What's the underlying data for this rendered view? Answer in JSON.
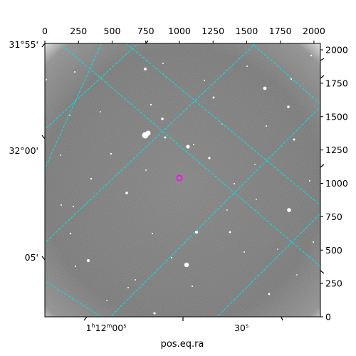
{
  "chart_data": {
    "type": "image",
    "xlabel": "pos.eq.ra",
    "ylabel": "",
    "pixel_axis_top": {
      "ticks": [
        0,
        250,
        500,
        750,
        1000,
        1250,
        1500,
        1750,
        2000
      ],
      "labels": [
        "0",
        "250",
        "500",
        "750",
        "1000",
        "1250",
        "1500",
        "1750",
        "2000"
      ],
      "xlim": [
        0,
        2048
      ]
    },
    "pixel_axis_right": {
      "ticks": [
        0,
        250,
        500,
        750,
        1000,
        1250,
        1500,
        1750,
        2000
      ],
      "labels": [
        "0",
        "250",
        "500",
        "750",
        "1000",
        "1250",
        "1500",
        "1750",
        "2000"
      ],
      "ylim": [
        0,
        2048
      ]
    },
    "ra_ticks": [
      {
        "label_pre": "1",
        "label_h": "h",
        "label_mid": "12",
        "label_m": "m",
        "label_sec": "00",
        "label_s": "s"
      },
      {
        "label_pre": "",
        "label_h": "",
        "label_mid": "",
        "label_m": "",
        "label_sec": "30",
        "label_s": "s"
      }
    ],
    "dec_ticks": [
      {
        "label": "31°55'"
      },
      {
        "label": "32°00'"
      },
      {
        "label": "05'"
      }
    ],
    "marker": {
      "shape": "circle",
      "x_pix": 1000,
      "y_pix": 1040,
      "color": "#ff00ff"
    },
    "grid": true,
    "grid_color": "#00e5e5",
    "colors": {
      "frame": "#000000",
      "background_sky": "#7a7a7a"
    }
  }
}
